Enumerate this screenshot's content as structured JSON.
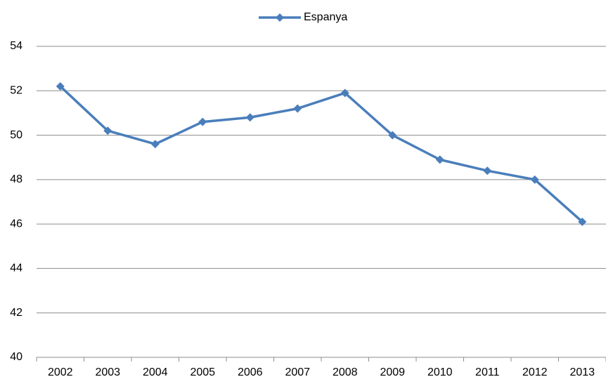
{
  "chart_data": {
    "type": "line",
    "categories": [
      "2002",
      "2003",
      "2004",
      "2005",
      "2006",
      "2007",
      "2008",
      "2009",
      "2010",
      "2011",
      "2012",
      "2013"
    ],
    "series": [
      {
        "name": "Espanya",
        "color": "#4a7ebb",
        "values": [
          52.2,
          50.2,
          49.6,
          50.6,
          50.8,
          51.2,
          51.9,
          50.0,
          48.9,
          48.4,
          48.0,
          46.1
        ]
      }
    ],
    "ylim": [
      40,
      54
    ],
    "yticks": [
      40,
      42,
      44,
      46,
      48,
      50,
      52,
      54
    ],
    "grid": true,
    "legend": "top"
  }
}
